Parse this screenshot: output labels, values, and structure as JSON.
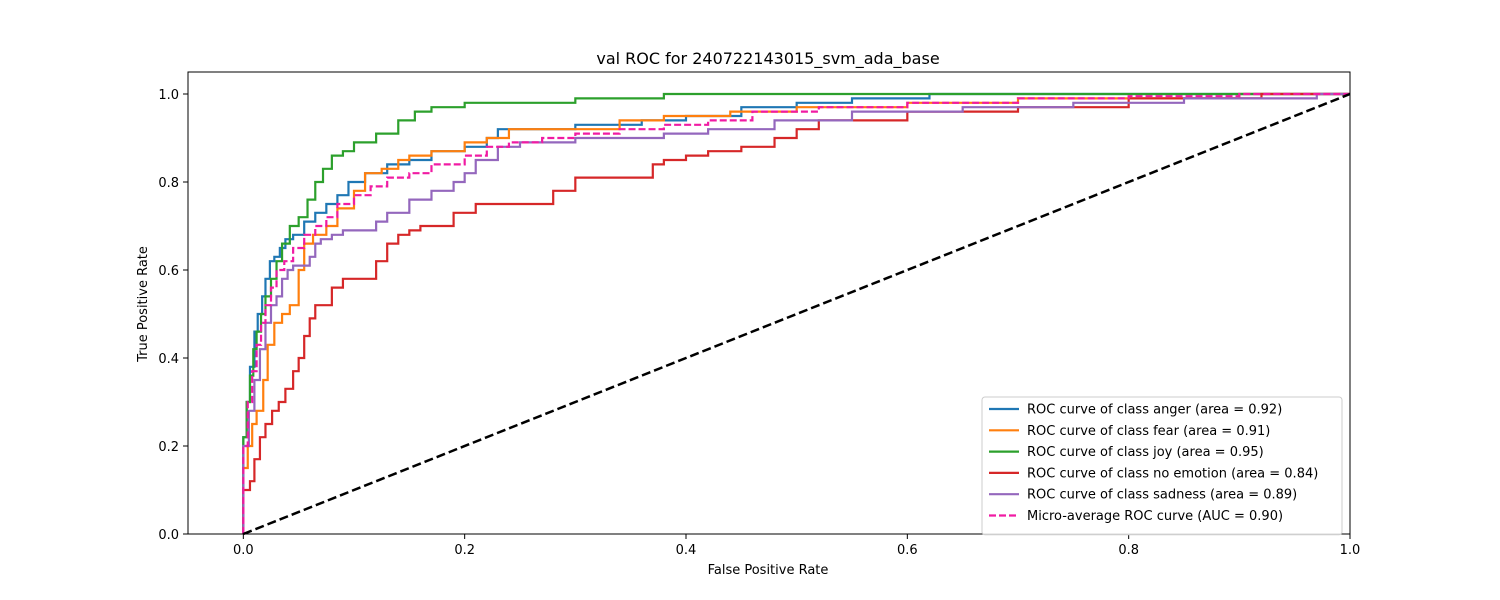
{
  "chart_data": {
    "type": "line",
    "title": "val ROC for 240722143015_svm_ada_base",
    "xlabel": "False Positive Rate",
    "ylabel": "True Positive Rate",
    "xlim": [
      -0.05,
      1.0
    ],
    "ylim": [
      0.0,
      1.05
    ],
    "xticks": [
      0.0,
      0.2,
      0.4,
      0.6,
      0.8,
      1.0
    ],
    "xtick_labels": [
      "0.0",
      "0.2",
      "0.4",
      "0.6",
      "0.8",
      "1.0"
    ],
    "yticks": [
      0.0,
      0.2,
      0.4,
      0.6,
      0.8,
      1.0
    ],
    "ytick_labels": [
      "0.0",
      "0.2",
      "0.4",
      "0.6",
      "0.8",
      "1.0"
    ],
    "grid": false,
    "legend_position": "lower-right",
    "series": [
      {
        "name": "ROC curve of class anger (area = 0.92)",
        "color": "#1f77b4",
        "style": "solid",
        "points": [
          [
            0,
            0
          ],
          [
            0,
            0.12
          ],
          [
            0.003,
            0.22
          ],
          [
            0.006,
            0.3
          ],
          [
            0.01,
            0.38
          ],
          [
            0.013,
            0.46
          ],
          [
            0.017,
            0.5
          ],
          [
            0.02,
            0.54
          ],
          [
            0.024,
            0.58
          ],
          [
            0.028,
            0.62
          ],
          [
            0.033,
            0.63
          ],
          [
            0.038,
            0.65
          ],
          [
            0.045,
            0.67
          ],
          [
            0.055,
            0.68
          ],
          [
            0.065,
            0.71
          ],
          [
            0.075,
            0.73
          ],
          [
            0.085,
            0.75
          ],
          [
            0.095,
            0.77
          ],
          [
            0.11,
            0.8
          ],
          [
            0.13,
            0.82
          ],
          [
            0.15,
            0.84
          ],
          [
            0.17,
            0.85
          ],
          [
            0.2,
            0.87
          ],
          [
            0.22,
            0.88
          ],
          [
            0.23,
            0.9
          ],
          [
            0.26,
            0.92
          ],
          [
            0.3,
            0.92
          ],
          [
            0.36,
            0.93
          ],
          [
            0.4,
            0.94
          ],
          [
            0.45,
            0.95
          ],
          [
            0.5,
            0.97
          ],
          [
            0.55,
            0.98
          ],
          [
            0.62,
            0.99
          ],
          [
            0.68,
            1.0
          ],
          [
            1.0,
            1.0
          ]
        ]
      },
      {
        "name": "ROC curve of class fear (area = 0.91)",
        "color": "#ff7f0e",
        "style": "solid",
        "points": [
          [
            0,
            0
          ],
          [
            0,
            0.1
          ],
          [
            0.004,
            0.15
          ],
          [
            0.008,
            0.2
          ],
          [
            0.012,
            0.25
          ],
          [
            0.018,
            0.28
          ],
          [
            0.022,
            0.35
          ],
          [
            0.028,
            0.43
          ],
          [
            0.035,
            0.48
          ],
          [
            0.042,
            0.5
          ],
          [
            0.05,
            0.52
          ],
          [
            0.055,
            0.6
          ],
          [
            0.063,
            0.66
          ],
          [
            0.075,
            0.68
          ],
          [
            0.085,
            0.7
          ],
          [
            0.1,
            0.74
          ],
          [
            0.11,
            0.78
          ],
          [
            0.125,
            0.82
          ],
          [
            0.14,
            0.83
          ],
          [
            0.15,
            0.85
          ],
          [
            0.17,
            0.86
          ],
          [
            0.2,
            0.87
          ],
          [
            0.22,
            0.89
          ],
          [
            0.24,
            0.9
          ],
          [
            0.28,
            0.92
          ],
          [
            0.34,
            0.92
          ],
          [
            0.38,
            0.94
          ],
          [
            0.44,
            0.95
          ],
          [
            0.5,
            0.96
          ],
          [
            0.6,
            0.97
          ],
          [
            0.7,
            0.98
          ],
          [
            0.8,
            0.99
          ],
          [
            0.9,
            0.99
          ],
          [
            1.0,
            1.0
          ]
        ]
      },
      {
        "name": "ROC curve of class joy (area = 0.95)",
        "color": "#2ca02c",
        "style": "solid",
        "points": [
          [
            0,
            0
          ],
          [
            0,
            0.14
          ],
          [
            0.003,
            0.22
          ],
          [
            0.006,
            0.3
          ],
          [
            0.009,
            0.36
          ],
          [
            0.012,
            0.42
          ],
          [
            0.016,
            0.46
          ],
          [
            0.02,
            0.5
          ],
          [
            0.025,
            0.54
          ],
          [
            0.03,
            0.58
          ],
          [
            0.035,
            0.62
          ],
          [
            0.042,
            0.66
          ],
          [
            0.05,
            0.7
          ],
          [
            0.058,
            0.72
          ],
          [
            0.065,
            0.76
          ],
          [
            0.072,
            0.8
          ],
          [
            0.08,
            0.83
          ],
          [
            0.09,
            0.86
          ],
          [
            0.1,
            0.87
          ],
          [
            0.12,
            0.89
          ],
          [
            0.14,
            0.91
          ],
          [
            0.155,
            0.94
          ],
          [
            0.17,
            0.96
          ],
          [
            0.2,
            0.97
          ],
          [
            0.24,
            0.98
          ],
          [
            0.3,
            0.98
          ],
          [
            0.38,
            0.99
          ],
          [
            0.45,
            1.0
          ],
          [
            1.0,
            1.0
          ]
        ]
      },
      {
        "name": "ROC curve of class no emotion (area = 0.84)",
        "color": "#d62728",
        "style": "solid",
        "points": [
          [
            0,
            0
          ],
          [
            0,
            0.05
          ],
          [
            0.006,
            0.1
          ],
          [
            0.01,
            0.12
          ],
          [
            0.015,
            0.17
          ],
          [
            0.02,
            0.22
          ],
          [
            0.026,
            0.25
          ],
          [
            0.032,
            0.28
          ],
          [
            0.038,
            0.3
          ],
          [
            0.045,
            0.33
          ],
          [
            0.05,
            0.37
          ],
          [
            0.055,
            0.4
          ],
          [
            0.06,
            0.45
          ],
          [
            0.065,
            0.49
          ],
          [
            0.08,
            0.52
          ],
          [
            0.09,
            0.56
          ],
          [
            0.12,
            0.58
          ],
          [
            0.13,
            0.62
          ],
          [
            0.14,
            0.66
          ],
          [
            0.15,
            0.68
          ],
          [
            0.16,
            0.69
          ],
          [
            0.19,
            0.7
          ],
          [
            0.21,
            0.73
          ],
          [
            0.23,
            0.75
          ],
          [
            0.28,
            0.75
          ],
          [
            0.3,
            0.78
          ],
          [
            0.32,
            0.81
          ],
          [
            0.37,
            0.81
          ],
          [
            0.38,
            0.84
          ],
          [
            0.4,
            0.85
          ],
          [
            0.42,
            0.86
          ],
          [
            0.45,
            0.87
          ],
          [
            0.48,
            0.88
          ],
          [
            0.5,
            0.9
          ],
          [
            0.52,
            0.92
          ],
          [
            0.6,
            0.94
          ],
          [
            0.7,
            0.96
          ],
          [
            0.8,
            0.97
          ],
          [
            0.92,
            0.99
          ],
          [
            1.0,
            1.0
          ]
        ]
      },
      {
        "name": "ROC curve of class sadness (area = 0.89)",
        "color": "#9467bd",
        "style": "solid",
        "points": [
          [
            0,
            0
          ],
          [
            0,
            0.1
          ],
          [
            0.005,
            0.2
          ],
          [
            0.01,
            0.28
          ],
          [
            0.015,
            0.35
          ],
          [
            0.02,
            0.42
          ],
          [
            0.025,
            0.48
          ],
          [
            0.03,
            0.52
          ],
          [
            0.035,
            0.54
          ],
          [
            0.04,
            0.58
          ],
          [
            0.045,
            0.6
          ],
          [
            0.06,
            0.61
          ],
          [
            0.065,
            0.63
          ],
          [
            0.07,
            0.66
          ],
          [
            0.08,
            0.67
          ],
          [
            0.09,
            0.68
          ],
          [
            0.12,
            0.69
          ],
          [
            0.13,
            0.71
          ],
          [
            0.15,
            0.73
          ],
          [
            0.17,
            0.76
          ],
          [
            0.19,
            0.78
          ],
          [
            0.2,
            0.8
          ],
          [
            0.21,
            0.82
          ],
          [
            0.23,
            0.85
          ],
          [
            0.25,
            0.88
          ],
          [
            0.27,
            0.89
          ],
          [
            0.3,
            0.89
          ],
          [
            0.38,
            0.9
          ],
          [
            0.42,
            0.91
          ],
          [
            0.48,
            0.92
          ],
          [
            0.55,
            0.94
          ],
          [
            0.65,
            0.96
          ],
          [
            0.75,
            0.97
          ],
          [
            0.85,
            0.98
          ],
          [
            0.97,
            0.99
          ],
          [
            1.0,
            1.0
          ]
        ]
      },
      {
        "name": "Micro-average ROC curve (AUC = 0.90)",
        "color": "#f01ba3",
        "style": "dashed",
        "points": [
          [
            0,
            0
          ],
          [
            0,
            0.12
          ],
          [
            0.004,
            0.2
          ],
          [
            0.008,
            0.3
          ],
          [
            0.012,
            0.37
          ],
          [
            0.016,
            0.43
          ],
          [
            0.02,
            0.48
          ],
          [
            0.025,
            0.52
          ],
          [
            0.03,
            0.56
          ],
          [
            0.037,
            0.6
          ],
          [
            0.045,
            0.62
          ],
          [
            0.055,
            0.65
          ],
          [
            0.065,
            0.68
          ],
          [
            0.075,
            0.7
          ],
          [
            0.085,
            0.72
          ],
          [
            0.1,
            0.75
          ],
          [
            0.115,
            0.77
          ],
          [
            0.13,
            0.79
          ],
          [
            0.15,
            0.81
          ],
          [
            0.17,
            0.82
          ],
          [
            0.2,
            0.84
          ],
          [
            0.22,
            0.86
          ],
          [
            0.24,
            0.88
          ],
          [
            0.27,
            0.89
          ],
          [
            0.3,
            0.9
          ],
          [
            0.34,
            0.91
          ],
          [
            0.38,
            0.92
          ],
          [
            0.42,
            0.93
          ],
          [
            0.46,
            0.94
          ],
          [
            0.52,
            0.96
          ],
          [
            0.6,
            0.97
          ],
          [
            0.7,
            0.98
          ],
          [
            0.8,
            0.99
          ],
          [
            0.9,
            0.995
          ],
          [
            1.0,
            1.0
          ]
        ]
      },
      {
        "name": "",
        "color": "#000000",
        "style": "dashed-thick",
        "points": [
          [
            0,
            0
          ],
          [
            1,
            1
          ]
        ]
      }
    ]
  }
}
